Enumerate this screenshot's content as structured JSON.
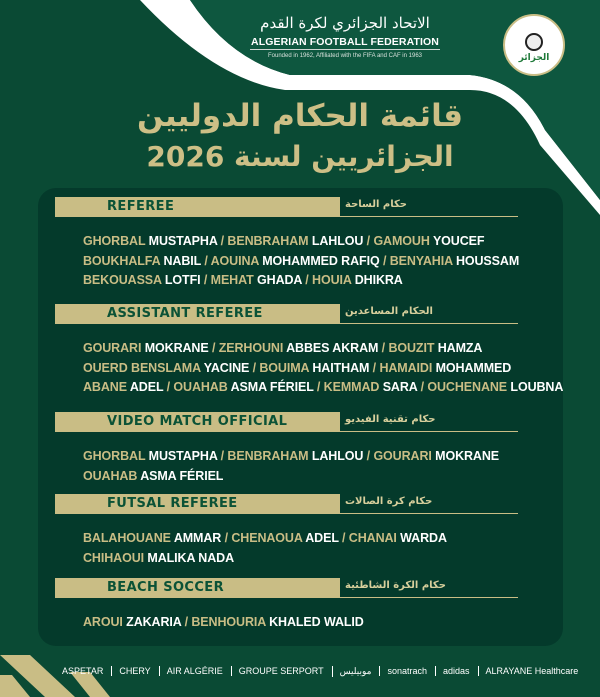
{
  "header": {
    "federation_ar": "الاتحاد الجزائري لكرة القدم",
    "federation_en": "ALGERIAN FOOTBALL FEDERATION",
    "federation_sub": "Founded in 1962, Affiliated with the FIFA and CAF in 1963",
    "logo_text": "الجزائر",
    "title_line1": "قائمة الحكام الدوليين",
    "title_line2": "الجزائريين لسنة 2026"
  },
  "colors": {
    "background": "#0a4a34",
    "panel": "#043a2b",
    "gold": "#c9bd85",
    "white": "#ffffff"
  },
  "sections": [
    {
      "title": "REFEREE",
      "title_ar": "حكام الساحة",
      "lines": [
        [
          {
            "s": "GHORBAL",
            "g": "MUSTAPHA"
          },
          {
            "s": "BENBRAHAM",
            "g": "LAHLOU"
          },
          {
            "s": "GAMOUH",
            "g": "YOUCEF"
          }
        ],
        [
          {
            "s": "BOUKHALFA",
            "g": "NABIL"
          },
          {
            "s": "AOUINA",
            "g": "MOHAMMED RAFIQ"
          },
          {
            "s": "BENYAHIA",
            "g": "HOUSSAM"
          }
        ],
        [
          {
            "s": "BEKOUASSA",
            "g": "LOTFI"
          },
          {
            "s": "MEHAT",
            "g": "GHADA"
          },
          {
            "s": "HOUIA",
            "g": "DHIKRA"
          }
        ]
      ]
    },
    {
      "title": "ASSISTANT REFEREE",
      "title_ar": "الحكام المساعدين",
      "lines": [
        [
          {
            "s": "GOURARI",
            "g": "MOKRANE"
          },
          {
            "s": "ZERHOUNI",
            "g": "ABBES AKRAM"
          },
          {
            "s": "BOUZIT",
            "g": "HAMZA"
          }
        ],
        [
          {
            "s": "OUERD BENSLAMA",
            "g": "YACINE"
          },
          {
            "s": "BOUIMA",
            "g": "HAITHAM"
          },
          {
            "s": "HAMAIDI",
            "g": "MOHAMMED"
          }
        ],
        [
          {
            "s": "ABANE",
            "g": "ADEL"
          },
          {
            "s": "OUAHAB",
            "g": "ASMA FÉRIEL"
          },
          {
            "s": "KEMMAD",
            "g": "SARA"
          },
          {
            "s": "OUCHENANE",
            "g": "LOUBNA"
          }
        ]
      ]
    },
    {
      "title": "VIDEO MATCH OFFICIAL",
      "title_ar": "حكام تقنية الفيديو",
      "lines": [
        [
          {
            "s": "GHORBAL",
            "g": "MUSTAPHA"
          },
          {
            "s": "BENBRAHAM",
            "g": "LAHLOU"
          },
          {
            "s": "GOURARI",
            "g": "MOKRANE"
          }
        ],
        [
          {
            "s": "OUAHAB",
            "g": "ASMA FÉRIEL"
          }
        ]
      ]
    },
    {
      "title": "FUTSAL REFEREE",
      "title_ar": "حكام كرة الصالات",
      "lines": [
        [
          {
            "s": "BALAHOUANE",
            "g": "AMMAR"
          },
          {
            "s": "CHENAOUA",
            "g": "ADEL"
          },
          {
            "s": "CHANAI",
            "g": "WARDA"
          }
        ],
        [
          {
            "s": "CHIHAOUI",
            "g": "MALIKA NADA"
          }
        ]
      ]
    },
    {
      "title": "BEACH SOCCER",
      "title_ar": "حكام الكرة الشاطئية",
      "lines": [
        [
          {
            "s": "AROUI",
            "g": "ZAKARIA"
          },
          {
            "s": "BENHOURIA",
            "g": "KHALED WALID"
          }
        ]
      ]
    }
  ],
  "sponsors": [
    "ASPETAR",
    "CHERY",
    "AIR ALGÉRIE",
    "GROUPE SERPORT",
    "موبيليس",
    "sonatrach",
    "adidas",
    "ALRAYANE Healthcare"
  ]
}
